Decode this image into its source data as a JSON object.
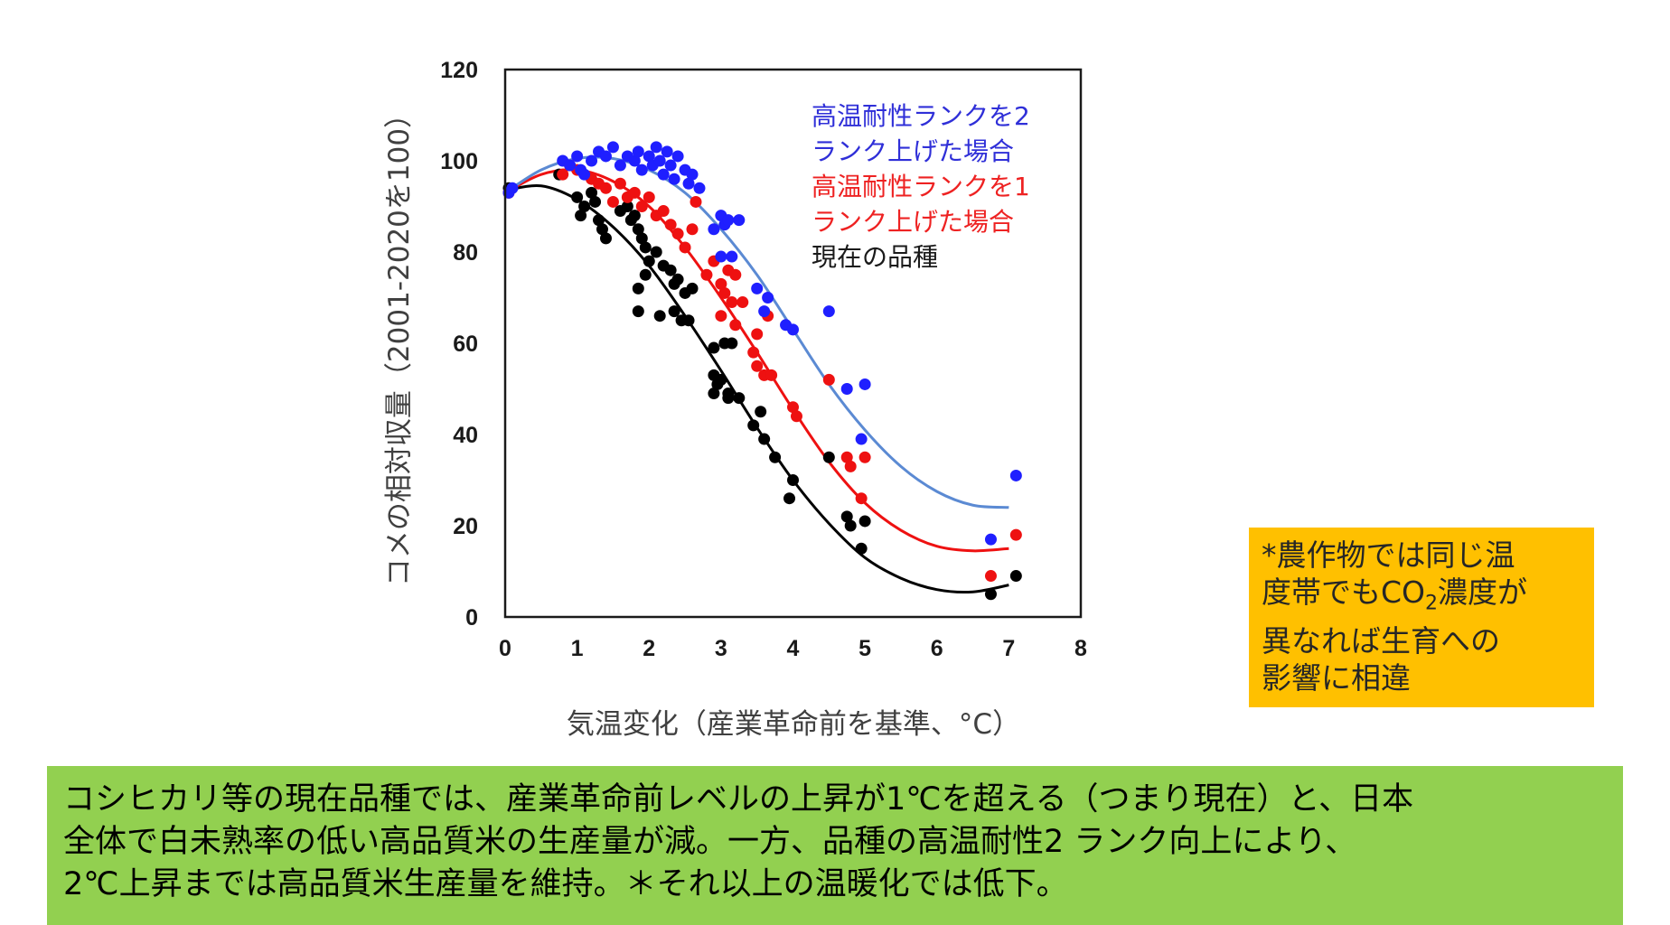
{
  "chart_data": {
    "type": "scatter",
    "xlabel": "気温変化（産業革命前を基準、°C）",
    "ylabel": "コメの相対収量（2001-2020を100）",
    "xlim": [
      0,
      8
    ],
    "ylim": [
      0,
      120
    ],
    "xticks": [
      "0",
      "1",
      "2",
      "3",
      "4",
      "5",
      "6",
      "7",
      "8"
    ],
    "yticks": [
      "0",
      "20",
      "40",
      "60",
      "80",
      "100",
      "120"
    ],
    "grid": false,
    "legend": {
      "placement": "top-right",
      "entries": [
        {
          "lines": [
            "高温耐性ランクを2",
            "ランク上げた場合"
          ],
          "color": "#2f2fd8"
        },
        {
          "lines": [
            "高温耐性ランクを1",
            "ランク上げた場合"
          ],
          "color": "#ee2222"
        },
        {
          "lines": [
            "現在の品種"
          ],
          "color": "#1a1a1a"
        }
      ]
    },
    "series": [
      {
        "name": "高温耐性ランクを2ランク上げた場合",
        "dot_color": "#1f1fff",
        "curve_color": "#5b8ad3",
        "points": [
          [
            0.05,
            93
          ],
          [
            0.1,
            94
          ],
          [
            0.8,
            100
          ],
          [
            0.9,
            99
          ],
          [
            1.0,
            101
          ],
          [
            1.05,
            98
          ],
          [
            1.1,
            97
          ],
          [
            1.2,
            100
          ],
          [
            1.3,
            102
          ],
          [
            1.4,
            101
          ],
          [
            1.5,
            103
          ],
          [
            1.6,
            99
          ],
          [
            1.7,
            101
          ],
          [
            1.8,
            100
          ],
          [
            1.85,
            102
          ],
          [
            1.9,
            98
          ],
          [
            2.0,
            101
          ],
          [
            2.05,
            99
          ],
          [
            2.1,
            103
          ],
          [
            2.15,
            100
          ],
          [
            2.2,
            97
          ],
          [
            2.25,
            102
          ],
          [
            2.3,
            99
          ],
          [
            2.35,
            96
          ],
          [
            2.4,
            101
          ],
          [
            2.5,
            98
          ],
          [
            2.55,
            95
          ],
          [
            2.6,
            97
          ],
          [
            2.7,
            94
          ],
          [
            2.9,
            85
          ],
          [
            3.0,
            88
          ],
          [
            3.05,
            86
          ],
          [
            3.1,
            87
          ],
          [
            3.25,
            87
          ],
          [
            3.0,
            79
          ],
          [
            3.15,
            79
          ],
          [
            3.5,
            72
          ],
          [
            3.65,
            70
          ],
          [
            3.6,
            67
          ],
          [
            3.9,
            64
          ],
          [
            4.0,
            63
          ],
          [
            4.5,
            67
          ],
          [
            4.75,
            50
          ],
          [
            5.0,
            51
          ],
          [
            4.95,
            39
          ],
          [
            6.75,
            17
          ],
          [
            7.1,
            31
          ]
        ],
        "curve": [
          [
            0,
            93
          ],
          [
            0.5,
            98
          ],
          [
            1.0,
            100.5
          ],
          [
            1.5,
            100.5
          ],
          [
            2.0,
            98
          ],
          [
            2.5,
            93
          ],
          [
            3.0,
            85
          ],
          [
            3.5,
            75
          ],
          [
            4.0,
            63
          ],
          [
            4.5,
            51
          ],
          [
            5.0,
            41
          ],
          [
            5.5,
            33
          ],
          [
            6.0,
            27.5
          ],
          [
            6.5,
            24.5
          ],
          [
            7.0,
            24
          ]
        ]
      },
      {
        "name": "高温耐性ランクを1ランク上げた場合",
        "dot_color": "#ee1111",
        "curve_color": "#ee1111",
        "points": [
          [
            0.05,
            93
          ],
          [
            0.8,
            97
          ],
          [
            0.9,
            99
          ],
          [
            1.0,
            98
          ],
          [
            1.2,
            96
          ],
          [
            1.3,
            95
          ],
          [
            1.4,
            94
          ],
          [
            1.5,
            91
          ],
          [
            1.6,
            95
          ],
          [
            1.7,
            92
          ],
          [
            1.8,
            93
          ],
          [
            1.9,
            90
          ],
          [
            2.0,
            92
          ],
          [
            2.1,
            88
          ],
          [
            2.2,
            89
          ],
          [
            2.3,
            86
          ],
          [
            2.4,
            84
          ],
          [
            2.5,
            81
          ],
          [
            2.6,
            85
          ],
          [
            2.65,
            91
          ],
          [
            2.8,
            75
          ],
          [
            2.9,
            78
          ],
          [
            3.0,
            73
          ],
          [
            3.05,
            71
          ],
          [
            3.1,
            76
          ],
          [
            3.15,
            69
          ],
          [
            3.2,
            75
          ],
          [
            3.3,
            69
          ],
          [
            3.0,
            66
          ],
          [
            3.2,
            64
          ],
          [
            3.45,
            58
          ],
          [
            3.5,
            55
          ],
          [
            3.6,
            53
          ],
          [
            3.7,
            53
          ],
          [
            3.5,
            62
          ],
          [
            3.65,
            66
          ],
          [
            4.0,
            46
          ],
          [
            4.05,
            44
          ],
          [
            4.5,
            52
          ],
          [
            4.75,
            35
          ],
          [
            4.8,
            33
          ],
          [
            4.95,
            26
          ],
          [
            5.0,
            35
          ],
          [
            6.75,
            9
          ],
          [
            7.1,
            18
          ]
        ],
        "curve": [
          [
            0,
            93
          ],
          [
            0.5,
            97
          ],
          [
            1.0,
            98
          ],
          [
            1.5,
            95.5
          ],
          [
            2.0,
            90
          ],
          [
            2.5,
            81
          ],
          [
            3.0,
            70
          ],
          [
            3.5,
            58
          ],
          [
            4.0,
            45.5
          ],
          [
            4.5,
            34
          ],
          [
            5.0,
            25
          ],
          [
            5.5,
            19
          ],
          [
            6.0,
            15.5
          ],
          [
            6.5,
            14.5
          ],
          [
            7.0,
            15
          ]
        ]
      },
      {
        "name": "現在の品種",
        "dot_color": "#000000",
        "curve_color": "#000000",
        "points": [
          [
            0.05,
            94
          ],
          [
            0.75,
            97
          ],
          [
            1.0,
            92
          ],
          [
            1.1,
            90
          ],
          [
            1.05,
            88
          ],
          [
            1.2,
            93
          ],
          [
            1.25,
            91
          ],
          [
            1.3,
            87
          ],
          [
            1.35,
            85
          ],
          [
            1.4,
            83
          ],
          [
            1.6,
            89
          ],
          [
            1.7,
            90
          ],
          [
            1.75,
            87
          ],
          [
            1.8,
            88
          ],
          [
            1.85,
            85
          ],
          [
            1.9,
            83
          ],
          [
            1.95,
            81
          ],
          [
            2.0,
            78
          ],
          [
            2.1,
            80
          ],
          [
            2.2,
            77
          ],
          [
            2.3,
            76
          ],
          [
            2.35,
            73
          ],
          [
            2.4,
            74
          ],
          [
            2.5,
            71
          ],
          [
            2.6,
            72
          ],
          [
            1.85,
            72
          ],
          [
            1.95,
            75
          ],
          [
            1.85,
            67
          ],
          [
            2.15,
            66
          ],
          [
            2.35,
            67
          ],
          [
            2.45,
            65
          ],
          [
            2.55,
            65
          ],
          [
            2.9,
            59
          ],
          [
            3.05,
            60
          ],
          [
            3.15,
            60
          ],
          [
            2.9,
            53
          ],
          [
            2.95,
            51
          ],
          [
            3.0,
            52
          ],
          [
            3.1,
            49
          ],
          [
            2.9,
            49
          ],
          [
            3.1,
            48
          ],
          [
            3.25,
            48
          ],
          [
            3.55,
            45
          ],
          [
            3.45,
            42
          ],
          [
            3.6,
            39
          ],
          [
            3.75,
            35
          ],
          [
            4.0,
            30
          ],
          [
            3.95,
            26
          ],
          [
            4.5,
            35
          ],
          [
            4.75,
            22
          ],
          [
            4.8,
            20
          ],
          [
            4.95,
            15
          ],
          [
            5.0,
            21
          ],
          [
            6.75,
            5
          ],
          [
            7.1,
            9
          ]
        ],
        "curve": [
          [
            0,
            93.5
          ],
          [
            0.5,
            94.5
          ],
          [
            1.0,
            91.5
          ],
          [
            1.5,
            85.5
          ],
          [
            2.0,
            77
          ],
          [
            2.5,
            66
          ],
          [
            3.0,
            54
          ],
          [
            3.5,
            41.5
          ],
          [
            4.0,
            30
          ],
          [
            4.5,
            20.5
          ],
          [
            5.0,
            13
          ],
          [
            5.5,
            8.5
          ],
          [
            6.0,
            6
          ],
          [
            6.5,
            5.5
          ],
          [
            7.0,
            7
          ]
        ]
      }
    ]
  },
  "note_box": {
    "lines": [
      "*農作物では同じ温",
      "度帯でもCO",
      "2",
      "濃度が",
      "異なれば生育への",
      "影響に相違"
    ]
  },
  "summary": {
    "lines": [
      "コシヒカリ等の現在品種では、産業革命前レベルの上昇が1℃を超える（つまり現在）と、日本",
      "全体で白未熟率の低い高品質米の生産量が減。一方、品種の高温耐性2 ランク向上により、",
      "2℃上昇までは高品質米生産量を維持。＊それ以上の温暖化では低下。"
    ]
  }
}
